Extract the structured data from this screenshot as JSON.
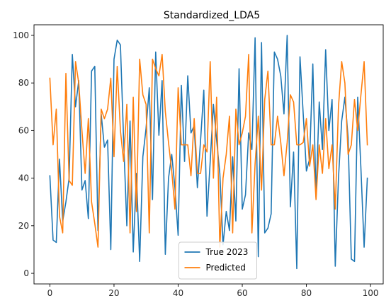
{
  "chart_data": {
    "type": "line",
    "title": "Standardized_LDA5",
    "xlabel": "",
    "ylabel": "",
    "xlim": [
      -4.95,
      103.95
    ],
    "ylim": [
      -4.45,
      104.45
    ],
    "xticks": [
      0,
      20,
      40,
      60,
      80,
      100
    ],
    "yticks": [
      0,
      20,
      40,
      60,
      80,
      100
    ],
    "grid": false,
    "legend_position": "lower center",
    "x": [
      0,
      1,
      2,
      3,
      4,
      5,
      6,
      7,
      8,
      9,
      10,
      11,
      12,
      13,
      14,
      15,
      16,
      17,
      18,
      19,
      20,
      21,
      22,
      23,
      24,
      25,
      26,
      27,
      28,
      29,
      30,
      31,
      32,
      33,
      34,
      35,
      36,
      37,
      38,
      39,
      40,
      41,
      42,
      43,
      44,
      45,
      46,
      47,
      48,
      49,
      50,
      51,
      52,
      53,
      54,
      55,
      56,
      57,
      58,
      59,
      60,
      61,
      62,
      63,
      64,
      65,
      66,
      67,
      68,
      69,
      70,
      71,
      72,
      73,
      74,
      75,
      76,
      77,
      78,
      79,
      80,
      81,
      82,
      83,
      84,
      85,
      86,
      87,
      88,
      89,
      90,
      91,
      92,
      93,
      94,
      95,
      96,
      97,
      98,
      99
    ],
    "series": [
      {
        "name": "True 2023",
        "color": "#1f77b4",
        "values": [
          41,
          14,
          13,
          48,
          22,
          30,
          40,
          92,
          70,
          81,
          35,
          39,
          23,
          85,
          87,
          18,
          67,
          53,
          56,
          10,
          90,
          98,
          96,
          56,
          20,
          64,
          9,
          42,
          5,
          49,
          61,
          78,
          31,
          93,
          58,
          81,
          8,
          40,
          50,
          36,
          16,
          79,
          47,
          83,
          59,
          62,
          36,
          56,
          77,
          24,
          47,
          71,
          56,
          42,
          12,
          26,
          18,
          49,
          22,
          86,
          27,
          33,
          59,
          52,
          99,
          7,
          97,
          17,
          19,
          25,
          93,
          90,
          83,
          67,
          100,
          28,
          51,
          2,
          91,
          67,
          43,
          48,
          88,
          32,
          72,
          52,
          94,
          60,
          73,
          3,
          40,
          64,
          74,
          57,
          6,
          5,
          74,
          44,
          11,
          40
        ]
      },
      {
        "name": "Predicted",
        "color": "#ff7f0e",
        "values": [
          82,
          54,
          69,
          24,
          17,
          84,
          39,
          37,
          89,
          80,
          60,
          42,
          65,
          30,
          21,
          11,
          69,
          65,
          69,
          82,
          49,
          87,
          60,
          47,
          71,
          17,
          74,
          26,
          90,
          75,
          71,
          17,
          90,
          86,
          83,
          92,
          68,
          55,
          43,
          27,
          78,
          54,
          54,
          54,
          41,
          65,
          42,
          42,
          54,
          51,
          89,
          40,
          74,
          11,
          40,
          50,
          66,
          17,
          69,
          54,
          59,
          66,
          92,
          17,
          46,
          66,
          35,
          73,
          85,
          54,
          54,
          66,
          55,
          41,
          55,
          75,
          72,
          54,
          54,
          55,
          65,
          45,
          54,
          31,
          54,
          42,
          65,
          44,
          54,
          27,
          70,
          89,
          80,
          50,
          54,
          73,
          60,
          75,
          89,
          54
        ]
      }
    ]
  }
}
